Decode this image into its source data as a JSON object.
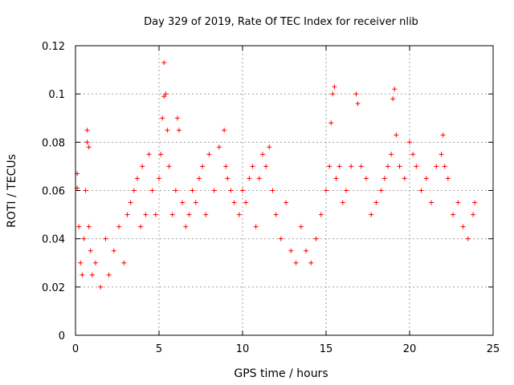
{
  "chart_data": {
    "type": "scatter",
    "title": "Day 329 of 2019, Rate Of TEC Index for receiver nlib",
    "xlabel": "GPS time / hours",
    "ylabel": "ROTI / TECUs",
    "xlim": [
      0,
      25
    ],
    "ylim": [
      0,
      0.12
    ],
    "xticks": [
      0,
      5,
      10,
      15,
      20,
      25
    ],
    "xtick_labels": [
      "0",
      "5",
      "10",
      "15",
      "20",
      "25"
    ],
    "yticks": [
      0,
      0.02,
      0.04,
      0.06,
      0.08,
      0.1,
      0.12
    ],
    "ytick_labels": [
      "0",
      "0.02",
      "0.04",
      "0.06",
      "0.08",
      "0.1",
      "0.12"
    ],
    "grid": true,
    "marker": "plus",
    "color": "#ff0000",
    "legend": "none",
    "series": [
      {
        "x": [
          0.1,
          0.1,
          0.2,
          0.3,
          0.4,
          0.5,
          0.6,
          0.7,
          0.7,
          0.8,
          0.8,
          0.9,
          1.0,
          1.2,
          1.5,
          1.8,
          2.0,
          2.3,
          2.6,
          2.9,
          3.1,
          3.3,
          3.5,
          3.7,
          3.9,
          4.0,
          4.2,
          4.4,
          4.6,
          4.8,
          5.0,
          5.1,
          5.2,
          5.3,
          5.3,
          5.4,
          5.5,
          5.6,
          5.8,
          6.0,
          6.1,
          6.2,
          6.4,
          6.6,
          6.8,
          7.0,
          7.2,
          7.4,
          7.6,
          7.8,
          8.0,
          8.3,
          8.6,
          8.9,
          9.0,
          9.1,
          9.3,
          9.5,
          9.8,
          10.0,
          10.2,
          10.4,
          10.6,
          10.8,
          11.0,
          11.2,
          11.4,
          11.6,
          11.8,
          12.0,
          12.3,
          12.6,
          12.9,
          13.2,
          13.5,
          13.8,
          14.1,
          14.4,
          14.7,
          15.0,
          15.2,
          15.3,
          15.4,
          15.5,
          15.6,
          15.8,
          16.0,
          16.2,
          16.5,
          16.8,
          16.9,
          17.1,
          17.4,
          17.7,
          18.0,
          18.3,
          18.5,
          18.7,
          18.9,
          19.0,
          19.1,
          19.2,
          19.4,
          19.7,
          20.0,
          20.2,
          20.4,
          20.7,
          21.0,
          21.3,
          21.6,
          21.9,
          22.0,
          22.1,
          22.3,
          22.6,
          22.9,
          23.2,
          23.5,
          23.8,
          23.9
        ],
        "y": [
          0.067,
          0.061,
          0.045,
          0.03,
          0.025,
          0.04,
          0.06,
          0.08,
          0.085,
          0.078,
          0.045,
          0.035,
          0.025,
          0.03,
          0.02,
          0.04,
          0.025,
          0.035,
          0.045,
          0.03,
          0.05,
          0.055,
          0.06,
          0.065,
          0.045,
          0.07,
          0.05,
          0.075,
          0.06,
          0.05,
          0.065,
          0.075,
          0.09,
          0.099,
          0.113,
          0.1,
          0.085,
          0.07,
          0.05,
          0.06,
          0.09,
          0.085,
          0.055,
          0.045,
          0.05,
          0.06,
          0.055,
          0.065,
          0.07,
          0.05,
          0.075,
          0.06,
          0.078,
          0.085,
          0.07,
          0.065,
          0.06,
          0.055,
          0.05,
          0.06,
          0.055,
          0.065,
          0.07,
          0.045,
          0.065,
          0.075,
          0.07,
          0.078,
          0.06,
          0.05,
          0.04,
          0.055,
          0.035,
          0.03,
          0.045,
          0.035,
          0.03,
          0.04,
          0.05,
          0.06,
          0.07,
          0.088,
          0.1,
          0.103,
          0.065,
          0.07,
          0.055,
          0.06,
          0.07,
          0.1,
          0.096,
          0.07,
          0.065,
          0.05,
          0.055,
          0.06,
          0.065,
          0.07,
          0.075,
          0.098,
          0.102,
          0.083,
          0.07,
          0.065,
          0.08,
          0.075,
          0.07,
          0.06,
          0.065,
          0.055,
          0.07,
          0.075,
          0.083,
          0.07,
          0.065,
          0.05,
          0.055,
          0.045,
          0.04,
          0.05,
          0.055
        ]
      }
    ]
  }
}
